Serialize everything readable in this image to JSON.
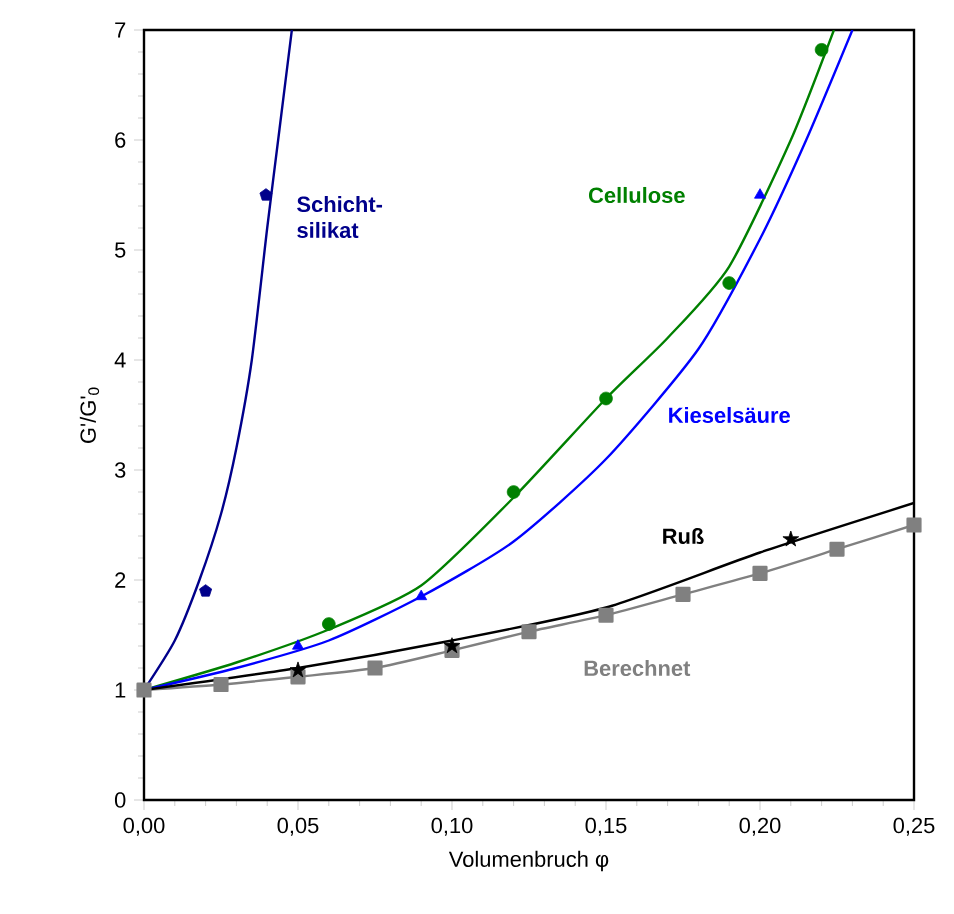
{
  "chart_data": {
    "type": "scatter",
    "xlabel": "Volumenbruch φ",
    "ylabel": "G'/G'$_{0}$",
    "xlim": [
      0,
      0.25
    ],
    "ylim": [
      0,
      7
    ],
    "xticks": [
      {
        "value": 0,
        "label": "0,00"
      },
      {
        "value": 0.05,
        "label": "0,05"
      },
      {
        "value": 0.1,
        "label": "0,10"
      },
      {
        "value": 0.15,
        "label": "0,15"
      },
      {
        "value": 0.2,
        "label": "0,20"
      },
      {
        "value": 0.25,
        "label": "0,25"
      }
    ],
    "yticks": [
      0,
      1,
      2,
      3,
      4,
      5,
      6,
      7
    ],
    "grid": false,
    "legend": false,
    "series": [
      {
        "name": "Schicht-silikat",
        "color": "#00008b",
        "x": [
          0.02,
          0.0396
        ],
        "values": [
          1.9,
          5.5
        ]
      },
      {
        "type": "line",
        "color": "#00008b",
        "marker": "none",
        "x": [
          0,
          0.01,
          0.018,
          0.025,
          0.03,
          0.035,
          0.04,
          0.044,
          0.048
        ],
        "values": [
          1,
          1.45,
          2,
          2.6,
          3.2,
          4.0,
          5.2,
          6.1,
          7
        ]
      },
      {
        "name": "Cellulose",
        "color": "#008000",
        "marker": "circle",
        "x": [
          0.06,
          0.12,
          0.15,
          0.19,
          0.22
        ],
        "values": [
          1.6,
          2.8,
          3.65,
          4.7,
          6.82
        ]
      },
      {
        "type": "line",
        "color": "#008000",
        "marker": "none",
        "x": [
          0,
          0.03,
          0.06,
          0.09,
          0.12,
          0.15,
          0.17,
          0.19,
          0.21,
          0.224
        ],
        "values": [
          1,
          1.25,
          1.55,
          1.95,
          2.75,
          3.65,
          4.2,
          4.85,
          6.0,
          7
        ]
      },
      {
        "name": "Kieselsäure",
        "color": "#0000ff",
        "marker": "triangle",
        "x": [
          0.05,
          0.09,
          0.2
        ],
        "values": [
          1.4,
          1.85,
          5.5
        ]
      },
      {
        "type": "line",
        "color": "#0000ff",
        "marker": "none",
        "x": [
          0,
          0.03,
          0.06,
          0.09,
          0.12,
          0.15,
          0.18,
          0.2,
          0.215,
          0.23
        ],
        "values": [
          1,
          1.2,
          1.45,
          1.85,
          2.35,
          3.1,
          4.1,
          5.1,
          6.0,
          7
        ]
      },
      {
        "name": "Berechnet",
        "type": "line",
        "color": "#808080",
        "marker": "square",
        "x": [
          0,
          0.025,
          0.05,
          0.075,
          0.1,
          0.125,
          0.15,
          0.175,
          0.2,
          0.225,
          0.25
        ],
        "values": [
          1,
          1.05,
          1.12,
          1.2,
          1.36,
          1.53,
          1.68,
          1.87,
          2.06,
          2.28,
          2.5
        ]
      },
      {
        "type": "line",
        "color": "#000000",
        "marker": "none",
        "x": [
          0,
          0.05,
          0.1,
          0.15,
          0.2,
          0.25
        ],
        "values": [
          1,
          1.2,
          1.45,
          1.75,
          2.25,
          2.7
        ]
      },
      {
        "name": "Ruß",
        "color": "#000000",
        "marker": "star",
        "x": [
          0.05,
          0.1,
          0.21
        ],
        "values": [
          1.18,
          1.4,
          2.37
        ]
      }
    ]
  }
}
